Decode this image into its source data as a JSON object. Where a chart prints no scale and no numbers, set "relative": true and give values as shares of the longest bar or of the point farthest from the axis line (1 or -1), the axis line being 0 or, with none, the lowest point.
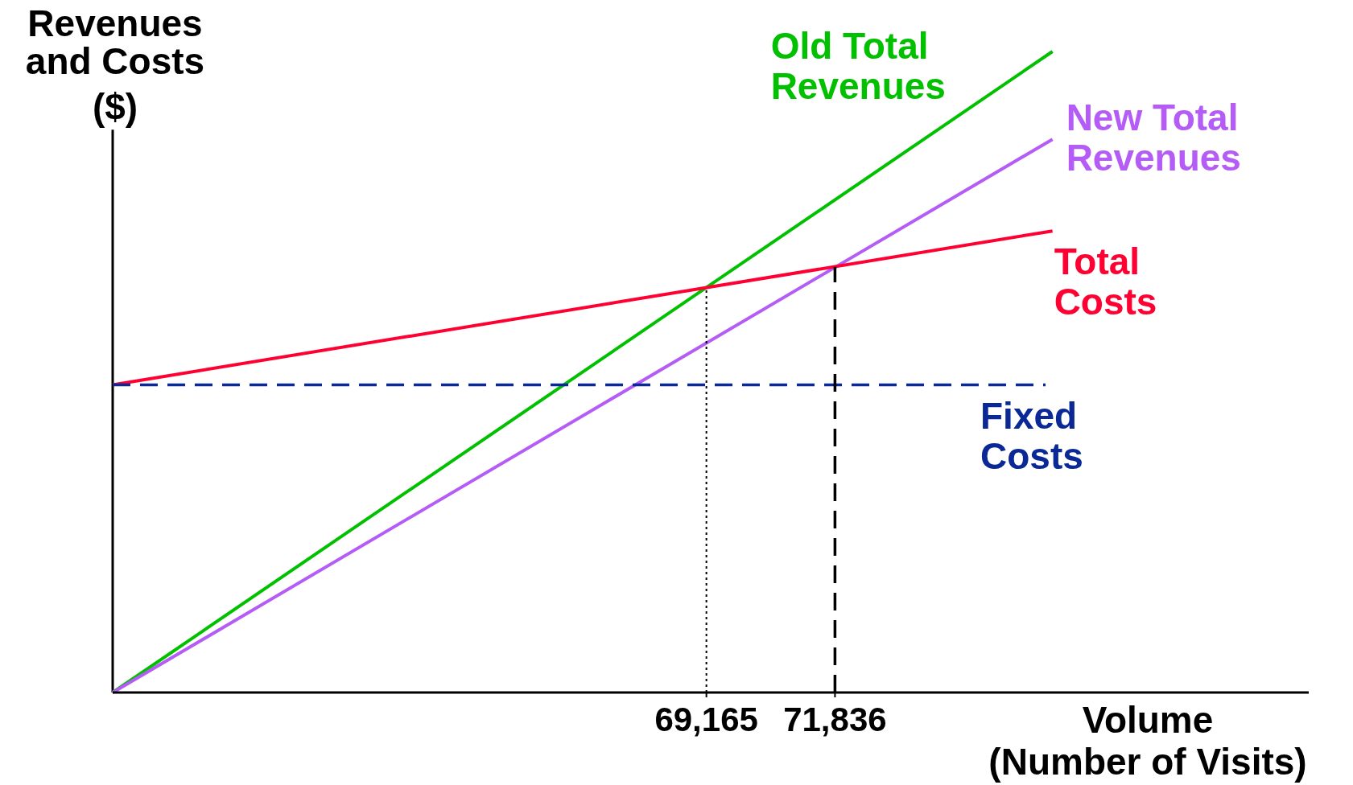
{
  "chart_data": {
    "type": "line",
    "relative": true,
    "xlabel": "Volume\n(Number of Visits)",
    "ylabel": "Revenues\nand Costs\n($)",
    "xlim": [
      56832,
      81677
    ],
    "xticks": [
      {
        "value": 69165,
        "label": "69,165"
      },
      {
        "value": 71836,
        "label": "71,836"
      }
    ],
    "series": [
      {
        "color": "#000000",
        "x": [
          56832,
          56832
        ],
        "values": [
          0,
          0.878
        ]
      },
      {
        "name": "Old Total\nRevenues",
        "color": "#00c000",
        "x": [
          56832,
          76354
        ],
        "values": [
          0,
          1
        ]
      },
      {
        "name": "New Total\nRevenues",
        "color": "#b45cf5",
        "x": [
          56832,
          76354
        ],
        "values": [
          0,
          0.863
        ]
      },
      {
        "name": "Total\nCosts",
        "color": "#ff0033",
        "x": [
          56832,
          76354
        ],
        "values": [
          0.48,
          0.72
        ]
      },
      {
        "name": "Fixed\nCosts",
        "color": "#0a2896",
        "line_style": "dashed",
        "x": [
          56832,
          76210
        ],
        "values": [
          0.48,
          0.48
        ]
      },
      {
        "color": "#000000",
        "line_style": "dotted",
        "x": [
          69165,
          69165
        ],
        "values": [
          0,
          0.632
        ]
      },
      {
        "color": "#000000",
        "line_style": "dashed",
        "x": [
          71836,
          71836
        ],
        "values": [
          0,
          0.664
        ]
      }
    ]
  }
}
